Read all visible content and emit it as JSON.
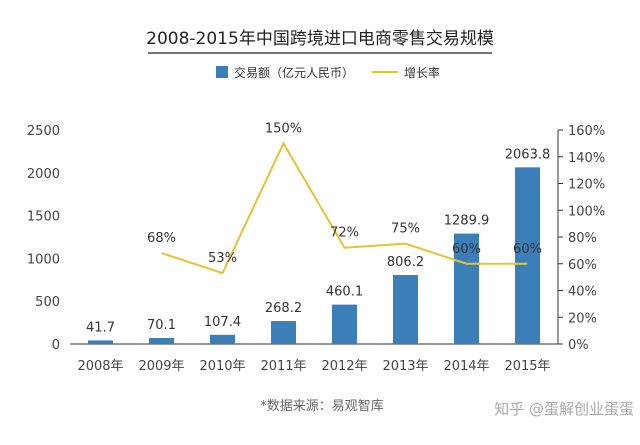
{
  "chart_data": {
    "type": "bar",
    "title": "2008-2015年中国跨境进口电商零售交易规模",
    "categories": [
      "2008年",
      "2009年",
      "2010年",
      "2011年",
      "2012年",
      "2013年",
      "2014年",
      "2015年"
    ],
    "series": [
      {
        "name": "交易额（亿元人民币）",
        "kind": "bar",
        "axis": "left",
        "color": "#3b7fb8",
        "values": [
          41.7,
          70.1,
          107.4,
          268.2,
          460.1,
          806.2,
          1289.9,
          2063.8
        ],
        "labels": [
          "41.7",
          "70.1",
          "107.4",
          "268.2",
          "460.1",
          "806.2",
          "1289.9",
          "2063.8"
        ]
      },
      {
        "name": "增长率",
        "kind": "line",
        "axis": "right",
        "color": "#e8c136",
        "values": [
          null,
          68,
          53,
          150,
          72,
          75,
          60,
          60
        ],
        "labels": [
          "",
          "68%",
          "53%",
          "150%",
          "72%",
          "75%",
          "60%",
          "60%"
        ]
      }
    ],
    "y_left": {
      "min": 0,
      "max": 2500,
      "ticks": [
        "0",
        "500",
        "1000",
        "1500",
        "2000",
        "2500"
      ]
    },
    "y_right": {
      "min": 0,
      "max": 160,
      "ticks": [
        "0%",
        "20%",
        "40%",
        "60%",
        "80%",
        "100%",
        "120%",
        "140%",
        "160%"
      ]
    },
    "legend_position": "top-center",
    "grid": false
  },
  "source": "*数据来源：易观智库",
  "watermark": "知乎 @蛋解创业蛋蛋"
}
